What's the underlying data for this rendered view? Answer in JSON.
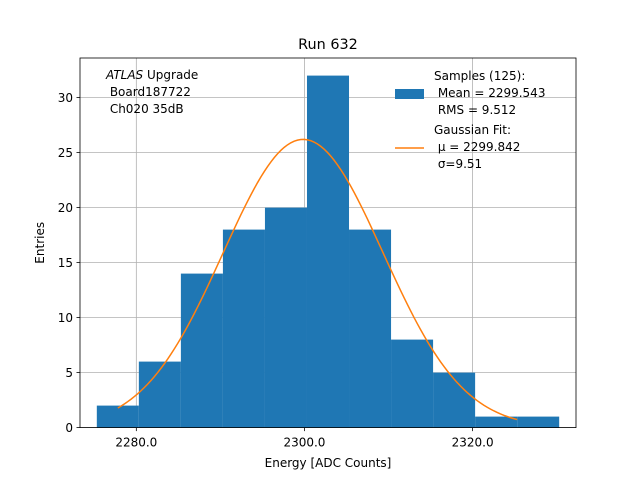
{
  "chart_data": {
    "type": "bar",
    "title": "Run 632",
    "xlabel": "Energy [ADC Counts]",
    "ylabel": "Entries",
    "xlim": [
      2273.3,
      2332.3
    ],
    "ylim": [
      0,
      33.6
    ],
    "x_ticks": [
      2280,
      2300,
      2320
    ],
    "x_tick_labels": [
      "2280.0",
      "2300.0",
      "2320.0"
    ],
    "y_ticks": [
      0,
      5,
      10,
      15,
      20,
      25,
      30
    ],
    "y_tick_labels": [
      "0",
      "5",
      "10",
      "15",
      "20",
      "25",
      "30"
    ],
    "grid": true,
    "histogram": {
      "bin_edges": [
        2275.3,
        2280.3,
        2285.3,
        2290.3,
        2295.3,
        2300.3,
        2305.3,
        2310.3,
        2315.3,
        2320.3,
        2325.3,
        2330.3
      ],
      "counts": [
        2,
        6,
        14,
        18,
        20,
        32,
        18,
        8,
        5,
        1,
        1
      ],
      "color": "#1f77b4"
    },
    "fit": {
      "type": "gaussian",
      "amplitude": 26.2,
      "mu": 2299.842,
      "sigma": 9.51,
      "x_range": [
        2277.8,
        2325.3
      ],
      "color": "#ff7f0e"
    },
    "legend": {
      "placement": "top-right",
      "entries": [
        {
          "lines": [
            "Samples (125):",
            " Mean = 2299.543",
            " RMS = 9.512"
          ],
          "marker": "patch",
          "color": "#1f77b4"
        },
        {
          "lines": [
            "Gaussian Fit:",
            " μ = 2299.842",
            " σ=9.51"
          ],
          "marker": "line",
          "color": "#ff7f0e"
        }
      ]
    },
    "annotation": {
      "italic": "ATLAS",
      "rest": " Upgrade",
      "lines": [
        " Board187722",
        " Ch020 35dB"
      ]
    }
  }
}
